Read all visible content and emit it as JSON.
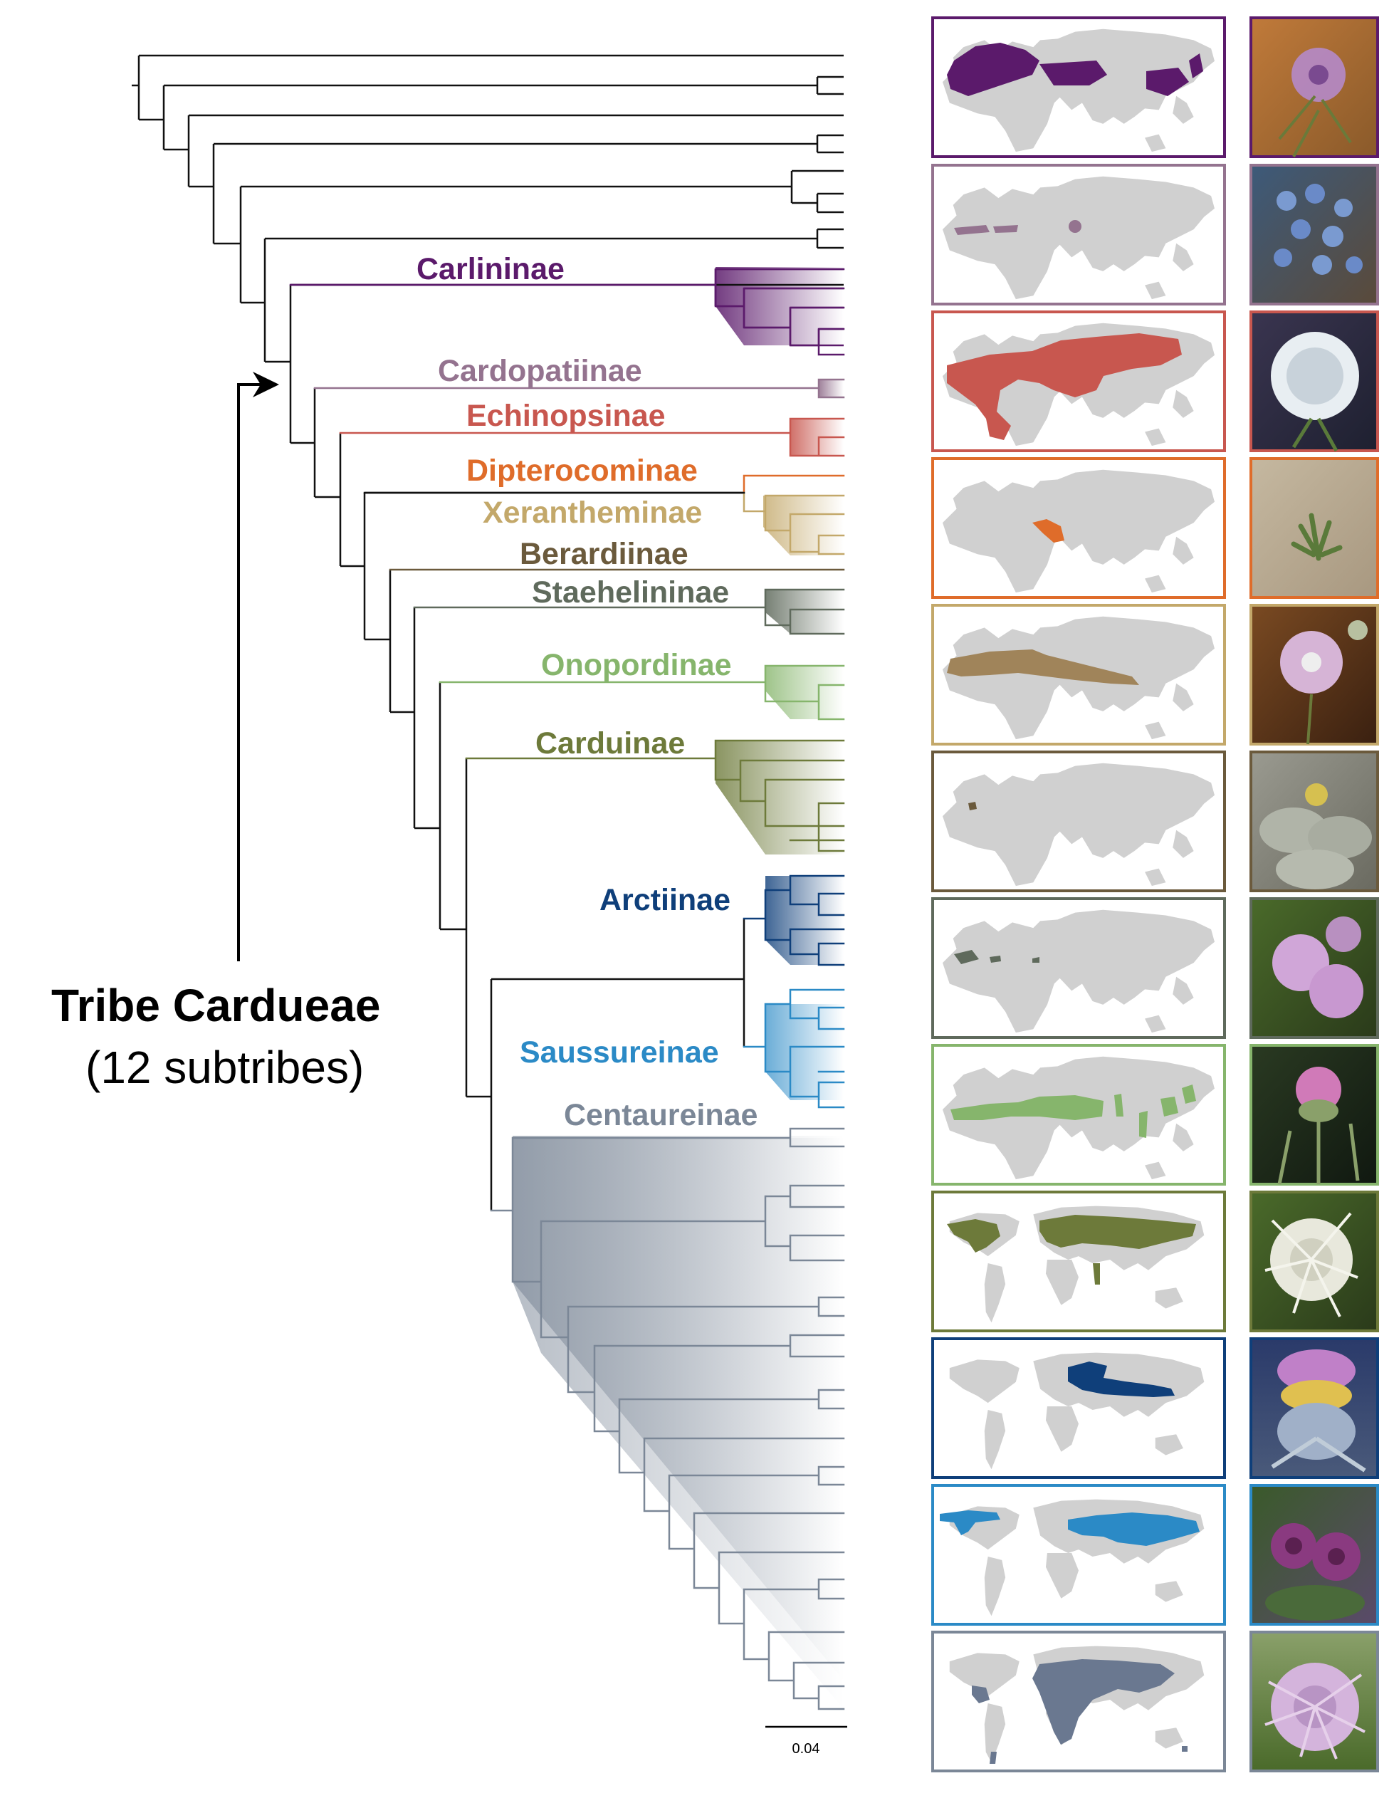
{
  "tribe": {
    "title": "Tribe Cardueae",
    "subtitle": "(12 subtribes)"
  },
  "scale_bar": {
    "label": "0.04"
  },
  "subtribes": [
    {
      "name": "Carlininae",
      "color": "#5b1a6b",
      "map_region": "europe-asia"
    },
    {
      "name": "Cardopatiinae",
      "color": "#94738f",
      "map_region": "mediterranean-patches"
    },
    {
      "name": "Echinopsinae",
      "color": "#c8574f",
      "map_region": "eurasia-africa"
    },
    {
      "name": "Dipterocominae",
      "color": "#df6c2a",
      "map_region": "middle-east"
    },
    {
      "name": "Xerantheminae",
      "color": "#c3a86a",
      "map_region": "mediterranean-central-asia"
    },
    {
      "name": "Berardiinae",
      "color": "#6b5a3c",
      "map_region": "morocco"
    },
    {
      "name": "Staehelininae",
      "color": "#5f6a5c",
      "map_region": "west-mediterranean"
    },
    {
      "name": "Onopordinae",
      "color": "#86b56c",
      "map_region": "mediterranean-asia-patches"
    },
    {
      "name": "Carduinae",
      "color": "#6d7a3a",
      "map_region": "holarctic"
    },
    {
      "name": "Arctiinae",
      "color": "#0f3f7a",
      "map_region": "europe-central-asia"
    },
    {
      "name": "Saussureinae",
      "color": "#2b8ac6",
      "map_region": "north-america-asia"
    },
    {
      "name": "Centaureinae",
      "color": "#7b8797",
      "map_region": "old-world-widespread"
    }
  ]
}
